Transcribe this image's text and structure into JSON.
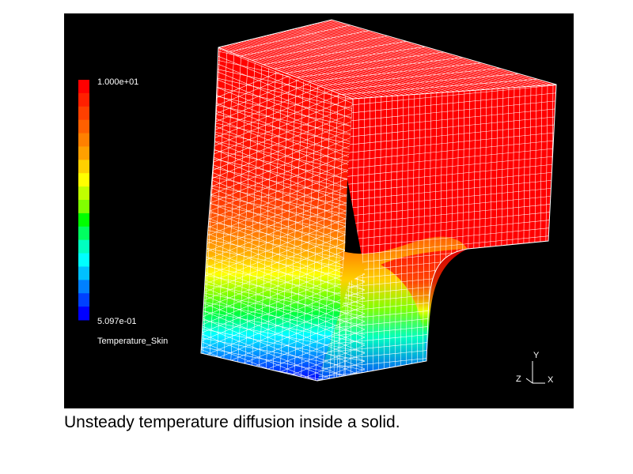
{
  "figure": {
    "caption": "Unsteady temperature diffusion inside a solid."
  },
  "legend": {
    "max_label": "1.000e+01",
    "min_label": "5.097e-01",
    "variable_label": "Temperature_Skin",
    "colors": [
      "#ff0000",
      "#ff2000",
      "#ff4000",
      "#ff6000",
      "#ff8000",
      "#ffa000",
      "#ffd000",
      "#ffff00",
      "#c0ff00",
      "#80ff00",
      "#00ff00",
      "#00ff60",
      "#00ffc0",
      "#00ffff",
      "#00c0ff",
      "#0080ff",
      "#0040ff",
      "#0000ff"
    ]
  },
  "axes_triad": {
    "y_label": "Y",
    "z_label": "Z",
    "x_label": "X"
  },
  "colors": {
    "background": "#000000",
    "mesh_lines": "#ffffff"
  }
}
